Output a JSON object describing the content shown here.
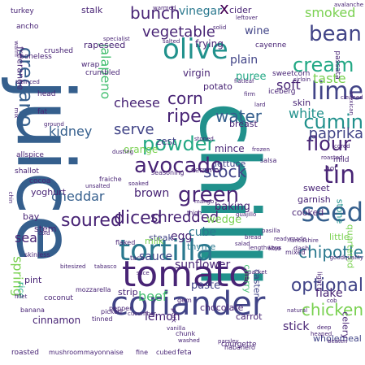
{
  "palette": {
    "background": "#ffffff",
    "colors": [
      "#440154",
      "#482475",
      "#414487",
      "#355f8d",
      "#2a788e",
      "#21918c",
      "#22a884",
      "#44bf70",
      "#7ad151",
      "#bddf26",
      "#fde725"
    ]
  },
  "words": [
    {
      "text": "chilli",
      "size": 100,
      "color": 5
    },
    {
      "text": "juice",
      "size": 96,
      "color": 3
    },
    {
      "text": "tomato",
      "size": 44,
      "color": 1
    },
    {
      "text": "coriander",
      "size": 40,
      "color": 2
    },
    {
      "text": "tortilla",
      "size": 36,
      "color": 4
    },
    {
      "text": "olive",
      "size": 34,
      "color": 5
    },
    {
      "text": "seed",
      "size": 32,
      "color": 3
    },
    {
      "text": "lime",
      "size": 30,
      "color": 2
    },
    {
      "text": "tin",
      "size": 30,
      "color": 1
    },
    {
      "text": "green",
      "size": 26,
      "color": 1
    },
    {
      "text": "bean",
      "size": 26,
      "color": 2
    },
    {
      "text": "cream",
      "size": 24,
      "color": 6
    },
    {
      "text": "oregano",
      "size": 24,
      "color": 3
    },
    {
      "text": "avocado",
      "size": 26,
      "color": 1
    },
    {
      "text": "powder",
      "size": 24,
      "color": 6
    },
    {
      "text": "flour",
      "size": 24,
      "color": 1
    },
    {
      "text": "cumin",
      "size": 24,
      "color": 5
    },
    {
      "text": "optional",
      "size": 22,
      "color": 2
    },
    {
      "text": "chicken",
      "size": 20,
      "color": 8
    },
    {
      "text": "soured",
      "size": 22,
      "color": 1
    },
    {
      "text": "diced",
      "size": 22,
      "color": 1
    },
    {
      "text": "bunch",
      "size": 20,
      "color": 1
    },
    {
      "text": "corn",
      "size": 20,
      "color": 1
    },
    {
      "text": "ripe",
      "size": 22,
      "color": 1
    },
    {
      "text": "water",
      "size": 20,
      "color": 3
    },
    {
      "text": "stock",
      "size": 20,
      "color": 2
    },
    {
      "text": "chipotle",
      "size": 20,
      "color": 4
    },
    {
      "text": "paprika",
      "size": 18,
      "color": 2
    },
    {
      "text": "vegetable",
      "size": 18,
      "color": 1
    },
    {
      "text": "shredded",
      "size": 18,
      "color": 1
    },
    {
      "text": "cheddar",
      "size": 16,
      "color": 3
    },
    {
      "text": "serve",
      "size": 18,
      "color": 2
    },
    {
      "text": "kidney",
      "size": 16,
      "color": 3
    },
    {
      "text": "spring",
      "size": 16,
      "color": 8
    },
    {
      "text": "white",
      "size": 16,
      "color": 5
    },
    {
      "text": "soft",
      "size": 16,
      "color": 1
    },
    {
      "text": "smoked",
      "size": 16,
      "color": 8
    },
    {
      "text": "taste",
      "size": 16,
      "color": 8
    },
    {
      "text": "cheese",
      "size": 16,
      "color": 1
    },
    {
      "text": "lemon",
      "size": 14,
      "color": 1
    },
    {
      "text": "beef",
      "size": 16,
      "color": 7
    },
    {
      "text": "sunflower",
      "size": 14,
      "color": 1
    },
    {
      "text": "stick",
      "size": 14,
      "color": 1
    },
    {
      "text": "flake",
      "size": 14,
      "color": 1
    },
    {
      "text": "egg",
      "size": 14,
      "color": 1
    },
    {
      "text": "cube",
      "size": 14,
      "color": 4
    },
    {
      "text": "wedge",
      "size": 13,
      "color": 8
    },
    {
      "text": "jalapeno",
      "size": 16,
      "color": 7
    },
    {
      "text": "vinegar",
      "size": 14,
      "color": 4
    },
    {
      "text": "x",
      "size": 20,
      "color": 0
    },
    {
      "text": "sea",
      "size": 16,
      "color": 1
    },
    {
      "text": "brown",
      "size": 14,
      "color": 1
    },
    {
      "text": "sauce",
      "size": 14,
      "color": 2
    },
    {
      "text": "baking",
      "size": 13,
      "color": 1
    },
    {
      "text": "plain",
      "size": 14,
      "color": 2
    },
    {
      "text": "puree",
      "size": 13,
      "color": 6
    },
    {
      "text": "wine",
      "size": 13,
      "color": 2
    },
    {
      "text": "cinnamon",
      "size": 12,
      "color": 1
    },
    {
      "text": "paste",
      "size": 13,
      "color": 2
    },
    {
      "text": "chocolate",
      "size": 11,
      "color": 1
    },
    {
      "text": "wholemeal",
      "size": 11,
      "color": 2
    },
    {
      "text": "mince",
      "size": 12,
      "color": 1
    },
    {
      "text": "thyme",
      "size": 11,
      "color": 4
    },
    {
      "text": "cooked",
      "size": 11,
      "color": 1
    },
    {
      "text": "garnish",
      "size": 11,
      "color": 1
    },
    {
      "text": "sweet",
      "size": 11,
      "color": 1
    },
    {
      "text": "zest",
      "size": 12,
      "color": 2
    },
    {
      "text": "lettuce",
      "size": 11,
      "color": 2
    },
    {
      "text": "orange",
      "size": 12,
      "color": 8
    },
    {
      "text": "virgin",
      "size": 12,
      "color": 1
    },
    {
      "text": "frying",
      "size": 12,
      "color": 1
    },
    {
      "text": "rapeseed",
      "size": 11,
      "color": 1
    },
    {
      "text": "stalk",
      "size": 11,
      "color": 1
    },
    {
      "text": "freerange",
      "size": 11,
      "color": 1
    },
    {
      "text": "yoghurt",
      "size": 11,
      "color": 1
    },
    {
      "text": "pint",
      "size": 11,
      "color": 1
    },
    {
      "text": "rice",
      "size": 11,
      "color": 6
    },
    {
      "text": "strip",
      "size": 11,
      "color": 1
    },
    {
      "text": "steak",
      "size": 11,
      "color": 2
    },
    {
      "text": "milk",
      "size": 11,
      "color": 8
    },
    {
      "text": "stem",
      "size": 11,
      "color": 1
    },
    {
      "text": "bay",
      "size": 11,
      "color": 1
    },
    {
      "text": "carrot",
      "size": 11,
      "color": 1
    },
    {
      "text": "cherry",
      "size": 11,
      "color": 7
    },
    {
      "text": "caster",
      "size": 11,
      "color": 2
    },
    {
      "text": "celery",
      "size": 11,
      "color": 1
    },
    {
      "text": "quartered",
      "size": 11,
      "color": 8
    },
    {
      "text": "little",
      "size": 11,
      "color": 8
    },
    {
      "text": "stone",
      "size": 11,
      "color": 5
    },
    {
      "text": "breast",
      "size": 11,
      "color": 1
    },
    {
      "text": "potato",
      "size": 11,
      "color": 1
    },
    {
      "text": "skin",
      "size": 11,
      "color": 1
    },
    {
      "text": "cider",
      "size": 11,
      "color": 1
    },
    {
      "text": "sweetcorn",
      "size": 9,
      "color": 1
    },
    {
      "text": "passata",
      "size": 9,
      "color": 1
    },
    {
      "text": "cayenne",
      "size": 9,
      "color": 1
    },
    {
      "text": "iceberg",
      "size": 9,
      "color": 1
    },
    {
      "text": "crushed",
      "size": 9,
      "color": 1
    },
    {
      "text": "boneless",
      "size": 9,
      "color": 1
    },
    {
      "text": "wrap",
      "size": 9,
      "color": 1
    },
    {
      "text": "crumbled",
      "size": 9,
      "color": 1
    },
    {
      "text": "head",
      "size": 9,
      "color": 1
    },
    {
      "text": "fat",
      "size": 9,
      "color": 1
    },
    {
      "text": "hot",
      "size": 9,
      "color": 1
    },
    {
      "text": "mild",
      "size": 9,
      "color": 1
    },
    {
      "text": "turkey",
      "size": 9,
      "color": 1
    },
    {
      "text": "ancho",
      "size": 9,
      "color": 1
    },
    {
      "text": "allspice",
      "size": 9,
      "color": 1
    },
    {
      "text": "shallot",
      "size": 9,
      "color": 1
    },
    {
      "text": "cocoa",
      "size": 9,
      "color": 1
    },
    {
      "text": "serrano",
      "size": 9,
      "color": 1
    },
    {
      "text": "coconut",
      "size": 9,
      "color": 1
    },
    {
      "text": "mozzarella",
      "size": 8,
      "color": 1
    },
    {
      "text": "banana",
      "size": 8,
      "color": 1
    },
    {
      "text": "roasted",
      "size": 9,
      "color": 1
    },
    {
      "text": "mushroom",
      "size": 8,
      "color": 1
    },
    {
      "text": "mayonnaise",
      "size": 8,
      "color": 1
    },
    {
      "text": "fine",
      "size": 8,
      "color": 1
    },
    {
      "text": "cubed",
      "size": 8,
      "color": 1
    },
    {
      "text": "feta",
      "size": 9,
      "color": 1
    },
    {
      "text": "courgette",
      "size": 9,
      "color": 1
    },
    {
      "text": "habanero",
      "size": 8,
      "color": 1
    },
    {
      "text": "fraiche",
      "size": 8,
      "color": 1
    },
    {
      "text": "seasoning",
      "size": 8,
      "color": 1
    },
    {
      "text": "light",
      "size": 8,
      "color": 1
    },
    {
      "text": "pork",
      "size": 8,
      "color": 1
    },
    {
      "text": "flaked",
      "size": 8,
      "color": 1
    },
    {
      "text": "tinned",
      "size": 8,
      "color": 1
    },
    {
      "text": "picked",
      "size": 8,
      "color": 1
    },
    {
      "text": "pepper",
      "size": 8,
      "color": 1
    },
    {
      "text": "gem",
      "size": 8,
      "color": 1
    },
    {
      "text": "taco",
      "size": 8,
      "color": 1
    },
    {
      "text": "salsa",
      "size": 8,
      "color": 1
    },
    {
      "text": "dash",
      "size": 8,
      "color": 1
    },
    {
      "text": "litre",
      "size": 8,
      "color": 1
    },
    {
      "text": "mixed",
      "size": 8,
      "color": 1
    },
    {
      "text": "readymade",
      "size": 7,
      "color": 1
    },
    {
      "text": "cob",
      "size": 7,
      "color": 1
    },
    {
      "text": "natural",
      "size": 7,
      "color": 1
    },
    {
      "text": "deep",
      "size": 7,
      "color": 1
    },
    {
      "text": "heaped",
      "size": 7,
      "color": 1
    },
    {
      "text": "beaten",
      "size": 7,
      "color": 1
    },
    {
      "text": "goodquality",
      "size": 7,
      "color": 1
    },
    {
      "text": "roasted",
      "size": 7,
      "color": 1
    },
    {
      "text": "cored",
      "size": 7,
      "color": 1
    },
    {
      "text": "mexican",
      "size": 7,
      "color": 1
    },
    {
      "text": "cleaned",
      "size": 7,
      "color": 1
    },
    {
      "text": "minced",
      "size": 7,
      "color": 1
    },
    {
      "text": "sirloin",
      "size": 7,
      "color": 1
    },
    {
      "text": "leftover",
      "size": 7,
      "color": 1
    },
    {
      "text": "warmed",
      "size": 7,
      "color": 1
    },
    {
      "text": "solid",
      "size": 7,
      "color": 1
    },
    {
      "text": "salted",
      "size": 7,
      "color": 1
    },
    {
      "text": "specialist",
      "size": 7,
      "color": 1
    },
    {
      "text": "flatleaf",
      "size": 7,
      "color": 1
    },
    {
      "text": "firm",
      "size": 7,
      "color": 1
    },
    {
      "text": "lard",
      "size": 7,
      "color": 1
    },
    {
      "text": "stoned",
      "size": 7,
      "color": 1
    },
    {
      "text": "dusting",
      "size": 7,
      "color": 1
    },
    {
      "text": "unsalted",
      "size": 7,
      "color": 1
    },
    {
      "text": "frozen",
      "size": 7,
      "color": 1
    },
    {
      "text": "soaked",
      "size": 7,
      "color": 1
    },
    {
      "text": "thigh",
      "size": 7,
      "color": 1
    },
    {
      "text": "mango",
      "size": 7,
      "color": 1
    },
    {
      "text": "guajillo",
      "size": 7,
      "color": 1
    },
    {
      "text": "bread",
      "size": 7,
      "color": 1
    },
    {
      "text": "lengthways",
      "size": 7,
      "color": 1
    },
    {
      "text": "pasilla",
      "size": 7,
      "color": 1
    },
    {
      "text": "lancashire",
      "size": 7,
      "color": 1
    },
    {
      "text": "bitesized",
      "size": 7,
      "color": 1
    },
    {
      "text": "tabasco",
      "size": 7,
      "color": 1
    },
    {
      "text": "slice",
      "size": 7,
      "color": 1
    },
    {
      "text": "cucumber",
      "size": 7,
      "color": 1
    },
    {
      "text": "vanilla",
      "size": 7,
      "color": 1
    },
    {
      "text": "packet",
      "size": 7,
      "color": 1
    },
    {
      "text": "salad",
      "size": 7,
      "color": 1
    },
    {
      "text": "washed",
      "size": 7,
      "color": 1
    },
    {
      "text": "parsley",
      "size": 7,
      "color": 1
    },
    {
      "text": "chunk",
      "size": 8,
      "color": 1
    },
    {
      "text": "skinless",
      "size": 8,
      "color": 1
    },
    {
      "text": "fillet",
      "size": 7,
      "color": 1
    },
    {
      "text": "cold",
      "size": 7,
      "color": 1
    },
    {
      "text": "avalanche",
      "size": 7,
      "color": 1
    },
    {
      "text": "warm",
      "size": 7,
      "color": 1
    },
    {
      "text": "mix",
      "size": 7,
      "color": 1
    },
    {
      "text": "ground",
      "size": 7,
      "color": 1
    },
    {
      "text": "chin",
      "size": 7,
      "color": 1
    }
  ]
}
